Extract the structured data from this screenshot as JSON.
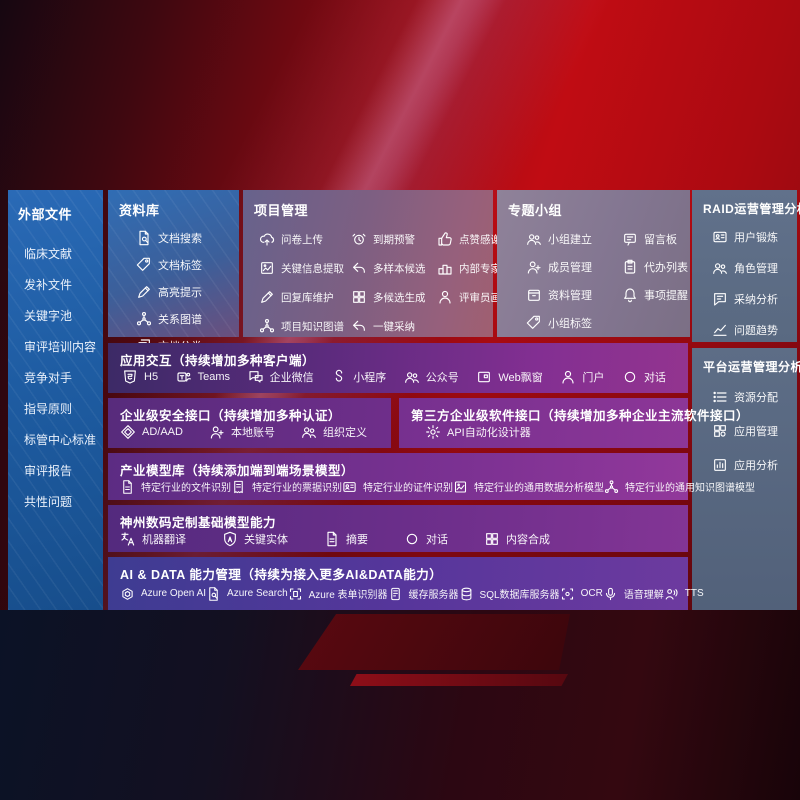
{
  "colors": {
    "bg_red": "#c00c13",
    "sidebar_blue": "#2a6ab6",
    "library_blue": "#306db4",
    "purple_row": "#6f2e8a",
    "indigo_row": "#44409a",
    "gray_panel": "#5d6d86"
  },
  "sidebar": {
    "title": "外部文件",
    "items": [
      "临床文献",
      "发补文件",
      "关键字池",
      "审评培训内容",
      "竞争对手",
      "指导原则",
      "标管中心标准",
      "审评报告",
      "共性问题"
    ]
  },
  "library": {
    "title": "资料库",
    "items": [
      {
        "label": "文档搜索",
        "icon": "doc-search"
      },
      {
        "label": "文档标签",
        "icon": "tag"
      },
      {
        "label": "高亮提示",
        "icon": "pen"
      },
      {
        "label": "关系图谱",
        "icon": "network"
      },
      {
        "label": "文档分类",
        "icon": "docs"
      }
    ]
  },
  "project": {
    "title": "项目管理",
    "items": [
      {
        "label": "问卷上传",
        "icon": "cloud-up"
      },
      {
        "label": "到期预警",
        "icon": "alarm"
      },
      {
        "label": "点赞感谢",
        "icon": "thumb"
      },
      {
        "label": "关键信息提取",
        "icon": "image"
      },
      {
        "label": "多样本候选",
        "icon": "reply"
      },
      {
        "label": "内部专家排名",
        "icon": "podium"
      },
      {
        "label": "回复库维护",
        "icon": "pen"
      },
      {
        "label": "多候选生成",
        "icon": "grid"
      },
      {
        "label": "评审员画像",
        "icon": "person"
      },
      {
        "label": "项目知识图谱",
        "icon": "network"
      },
      {
        "label": "一键采纳",
        "icon": "reply"
      }
    ]
  },
  "group": {
    "title": "专题小组",
    "items": [
      {
        "label": "小组建立",
        "icon": "people"
      },
      {
        "label": "留言板",
        "icon": "bbs"
      },
      {
        "label": "成员管理",
        "icon": "person-add"
      },
      {
        "label": "代办列表",
        "icon": "clipboard"
      },
      {
        "label": "资料管理",
        "icon": "archive"
      },
      {
        "label": "事项提醒",
        "icon": "bell"
      },
      {
        "label": "小组标签",
        "icon": "tag"
      }
    ]
  },
  "raid": {
    "title": "RAID运营管理分析",
    "items": [
      {
        "label": "用户锻炼",
        "icon": "id-card"
      },
      {
        "label": "角色管理",
        "icon": "people"
      },
      {
        "label": "采纳分析",
        "icon": "chat-qa"
      },
      {
        "label": "问题趋势",
        "icon": "chart-line"
      }
    ]
  },
  "platform": {
    "title": "平台运营管理分析",
    "items": [
      {
        "label": "资源分配",
        "icon": "list"
      },
      {
        "label": "应用管理",
        "icon": "apps-grid"
      },
      {
        "label": "应用分析",
        "icon": "chart-box"
      }
    ]
  },
  "interaction": {
    "title": "应用交互（持续增加多种客户端）",
    "items": [
      {
        "label": "H5",
        "icon": "h5"
      },
      {
        "label": "Teams",
        "icon": "teams"
      },
      {
        "label": "企业微信",
        "icon": "wechat"
      },
      {
        "label": "小程序",
        "icon": "mini-program"
      },
      {
        "label": "公众号",
        "icon": "people"
      },
      {
        "label": "Web飘窗",
        "icon": "window"
      },
      {
        "label": "门户",
        "icon": "person"
      },
      {
        "label": "对话",
        "icon": "chat"
      }
    ]
  },
  "security": {
    "title": "企业级安全接口（持续增加多种认证）",
    "items": [
      {
        "label": "AD/AAD",
        "icon": "diamond"
      },
      {
        "label": "本地账号",
        "icon": "person-add"
      },
      {
        "label": "组织定义",
        "icon": "people"
      }
    ]
  },
  "thirdparty": {
    "title": "第三方企业级软件接口（持续增加多种企业主流软件接口）",
    "items": [
      {
        "label": "API自动化设计器",
        "icon": "gear"
      }
    ]
  },
  "industry_models": {
    "title": "产业模型库（持续添加端到端场景模型）",
    "items": [
      {
        "label": "特定行业的文件识别",
        "icon": "doc"
      },
      {
        "label": "特定行业的票据识别",
        "icon": "receipt"
      },
      {
        "label": "特定行业的证件识别",
        "icon": "id-card"
      },
      {
        "label": "特定行业的通用数据分析模型",
        "icon": "image"
      },
      {
        "label": "特定行业的通用知识图谱模型",
        "icon": "network"
      }
    ]
  },
  "base_models": {
    "title": "神州数码定制基础模型能力",
    "items": [
      {
        "label": "机器翻译",
        "icon": "translate"
      },
      {
        "label": "关键实体",
        "icon": "shield-a"
      },
      {
        "label": "摘要",
        "icon": "doc"
      },
      {
        "label": "对话",
        "icon": "chat"
      },
      {
        "label": "内容合成",
        "icon": "grid"
      }
    ]
  },
  "ai_data": {
    "title": "AI & DATA 能力管理（持续为接入更多AI&DATA能力）",
    "items": [
      {
        "label": "Azure Open AI",
        "icon": "openai"
      },
      {
        "label": "Azure Search",
        "icon": "doc-search"
      },
      {
        "label": "Azure 表单识别器",
        "icon": "scan"
      },
      {
        "label": "缓存服务器",
        "icon": "server"
      },
      {
        "label": "SQL数据库服务器",
        "icon": "database"
      },
      {
        "label": "OCR",
        "icon": "ocr"
      },
      {
        "label": "语音理解",
        "icon": "mic"
      },
      {
        "label": "TTS",
        "icon": "tts"
      }
    ]
  }
}
